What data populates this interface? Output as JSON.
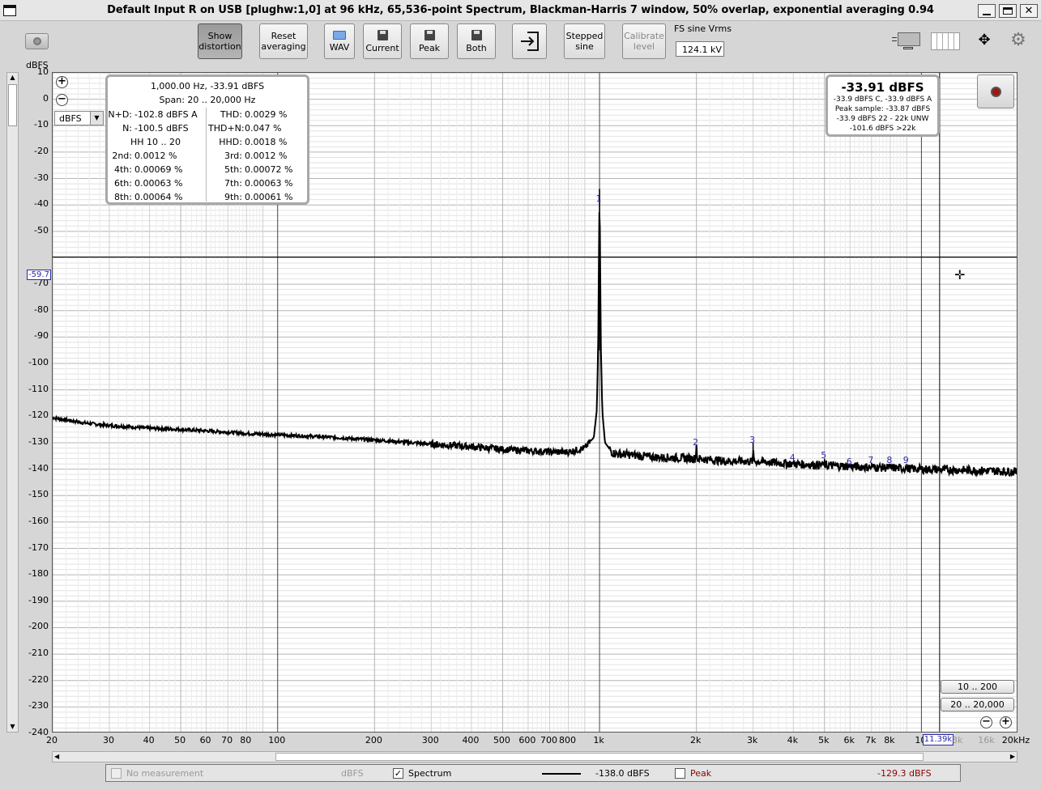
{
  "window": {
    "title": "Default Input R on USB [plughw:1,0] at 96 kHz, 65,536-point Spectrum, Blackman-Harris 7 window, 50% overlap, exponential averaging 0.94"
  },
  "toolbar": {
    "show_distortion": [
      "Show",
      "distortion"
    ],
    "reset_averaging": [
      "Reset",
      "averaging"
    ],
    "wav": "WAV",
    "current": "Current",
    "peak": "Peak",
    "both": "Both",
    "stepped_sine": [
      "Stepped",
      "sine"
    ],
    "calibrate_level": [
      "Calibrate",
      "level"
    ],
    "fs_sine_label": "FS sine Vrms",
    "fs_sine_value": "124.1 kV"
  },
  "plot": {
    "y_unit": "dBFS",
    "unit_select": "dBFS",
    "cursor_value": "-59.7",
    "cursor_freq": "11.39k",
    "x_tick_labels": [
      "20",
      "30",
      "40",
      "50",
      "60",
      "70",
      "80",
      "100",
      "200",
      "300",
      "400",
      "500",
      "600",
      "700",
      "800",
      "1k",
      "2k",
      "3k",
      "4k",
      "5k",
      "6k",
      "7k",
      "8k",
      "10",
      "3k",
      "16k",
      "20kHz"
    ],
    "harmonic_labels": [
      "1",
      "2",
      "3",
      "4",
      "5",
      "6",
      "7",
      "8",
      "9"
    ],
    "range_buttons": [
      "10 .. 200",
      "20 .. 20,000"
    ]
  },
  "distortion": {
    "header": "1,000.00 Hz, -33.91 dBFS",
    "span": "Span: 20 .. 20,000 Hz",
    "rows": [
      [
        "N+D:",
        "-102.8 dBFS A",
        "THD:",
        "0.0029 %"
      ],
      [
        "N:",
        "-100.5 dBFS",
        "THD+N:",
        "0.047 %"
      ],
      [
        "HH 10 .. 20",
        "",
        "HHD:",
        "0.0018 %"
      ],
      [
        "2nd:",
        "0.0012 %",
        "3rd:",
        "0.0012 %"
      ],
      [
        "4th:",
        "0.00069 %",
        "5th:",
        "0.00072 %"
      ],
      [
        "6th:",
        "0.00063 %",
        "7th:",
        "0.00063 %"
      ],
      [
        "8th:",
        "0.00064 %",
        "9th:",
        "0.00061 %"
      ]
    ]
  },
  "level": {
    "main": "-33.91 dBFS",
    "lines": [
      "-33.9 dBFS C, -33.9 dBFS A",
      "Peak sample: -33.87 dBFS",
      "-33.9 dBFS 22 - 22k UNW",
      "-101.6 dBFS >22k"
    ]
  },
  "status": {
    "no_measurement": "No measurement",
    "unit": "dBFS",
    "spectrum_label": "Spectrum",
    "spectrum_value": "-138.0 dBFS",
    "peak_label": "Peak",
    "peak_value": "-129.3 dBFS",
    "peak_color": "#8b0000"
  },
  "chart_data": {
    "type": "line",
    "xscale": "log",
    "xlim": [
      20,
      20000
    ],
    "ylim": [
      -240,
      10
    ],
    "y_ticks": [
      10,
      0,
      -10,
      -20,
      -30,
      -40,
      -50,
      -60,
      -70,
      -80,
      -90,
      -100,
      -110,
      -120,
      -130,
      -140,
      -150,
      -160,
      -170,
      -180,
      -190,
      -200,
      -210,
      -220,
      -230,
      -240
    ],
    "y_tick_labels": [
      "10",
      "0",
      "-10",
      "-20",
      "-30",
      "-40",
      "-50",
      "",
      "-70",
      "-80",
      "-90",
      "-100",
      "-110",
      "-120",
      "-130",
      "-140",
      "-150",
      "-160",
      "-170",
      "-180",
      "-190",
      "-200",
      "-210",
      "-220",
      "-230",
      "-240"
    ],
    "series": [
      {
        "x": [
          20,
          25,
          30,
          35,
          40,
          50,
          60,
          70,
          80,
          100,
          150,
          200,
          300,
          400,
          500,
          600,
          700,
          800,
          900,
          960,
          980,
          990,
          1000,
          1010,
          1020,
          1040,
          1100,
          1500,
          1990,
          2000,
          2010,
          2500,
          2990,
          3000,
          3010,
          4000,
          5000,
          6000,
          8000,
          10000,
          15000,
          20000
        ],
        "y": [
          -120.5,
          -122.5,
          -123.5,
          -124,
          -124.5,
          -125,
          -125.5,
          -126,
          -126.5,
          -127,
          -128,
          -129,
          -130.5,
          -131.5,
          -132.5,
          -133,
          -133.5,
          -133.5,
          -132,
          -128,
          -118,
          -95,
          -33.91,
          -95,
          -118,
          -130,
          -134,
          -135.5,
          -136,
          -131,
          -136,
          -137,
          -137,
          -130,
          -137,
          -138,
          -138.5,
          -139,
          -139.5,
          -140,
          -140.5,
          -141
        ]
      }
    ],
    "harmonics": [
      {
        "label": "1",
        "x": 1000,
        "y": -33.91
      },
      {
        "label": "2",
        "x": 2000,
        "y": -131
      },
      {
        "label": "3",
        "x": 3000,
        "y": -130
      },
      {
        "label": "4",
        "x": 4000,
        "y": -137
      },
      {
        "label": "5",
        "x": 5000,
        "y": -136
      },
      {
        "label": "6",
        "x": 6000,
        "y": -138
      },
      {
        "label": "7",
        "x": 7000,
        "y": -137.5
      },
      {
        "label": "8",
        "x": 8000,
        "y": -138
      },
      {
        "label": "9",
        "x": 9000,
        "y": -138
      }
    ],
    "cursor": {
      "x": 11390,
      "y": -59.7
    },
    "grid": true
  }
}
